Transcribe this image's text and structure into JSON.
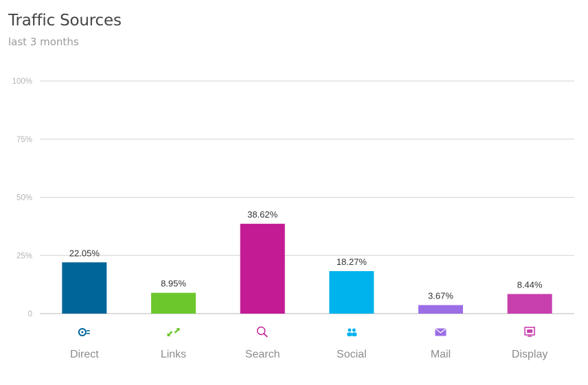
{
  "header": {
    "title": "Traffic Sources",
    "subtitle": "last 3 months"
  },
  "chart_data": {
    "type": "bar",
    "title": "Traffic Sources",
    "subtitle": "last 3 months",
    "categories": [
      "Direct",
      "Links",
      "Search",
      "Social",
      "Mail",
      "Display"
    ],
    "values": [
      22.05,
      8.95,
      38.62,
      18.27,
      3.67,
      8.44
    ],
    "value_labels": [
      "22.05%",
      "8.95%",
      "38.62%",
      "18.27%",
      "3.67%",
      "8.44%"
    ],
    "colors": [
      "#006699",
      "#6cc72d",
      "#c21b94",
      "#00b3ec",
      "#9b6ee6",
      "#c83fae"
    ],
    "icons": [
      "direct-icon",
      "links-icon",
      "search-icon",
      "social-icon",
      "mail-icon",
      "display-icon"
    ],
    "yticks": [
      "0",
      "25%",
      "50%",
      "75%",
      "100%"
    ],
    "ytick_values": [
      0,
      25,
      50,
      75,
      100
    ],
    "ylim": [
      0,
      100
    ],
    "grid": true,
    "legend": "none"
  }
}
